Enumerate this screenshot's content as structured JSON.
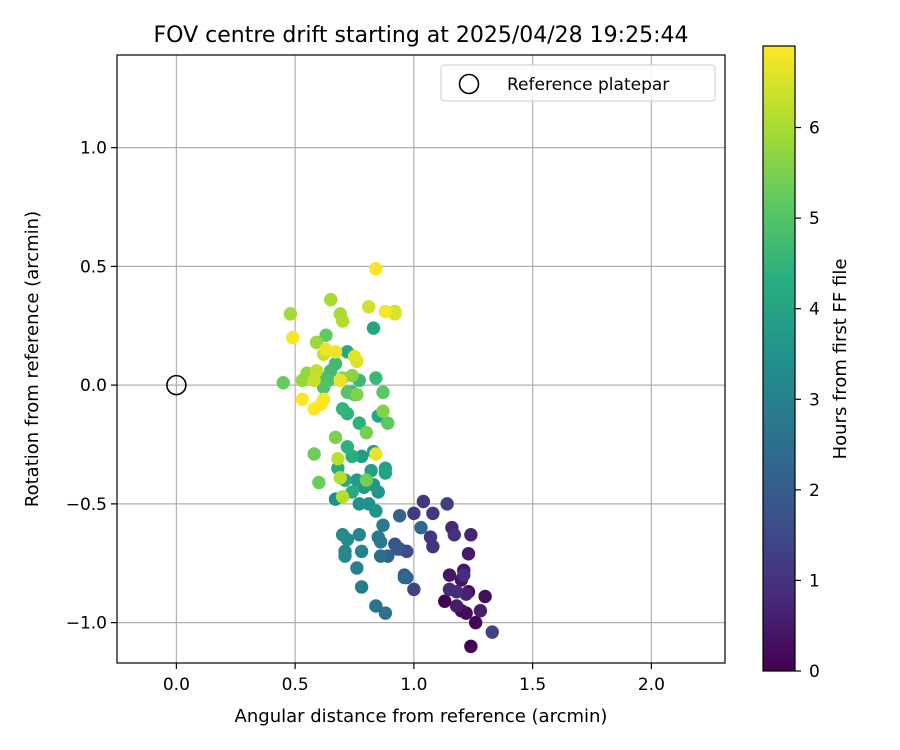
{
  "chart_data": {
    "type": "scatter",
    "title": "FOV centre drift starting at 2025/04/28 19:25:44",
    "xlabel": "Angular distance from reference (arcmin)",
    "ylabel": "Rotation from reference (arcmin)",
    "xlim": [
      -0.25,
      2.31
    ],
    "ylim": [
      -1.17,
      1.39
    ],
    "xticks": [
      "0.0",
      "0.5",
      "1.0",
      "1.5",
      "2.0"
    ],
    "xtick_values": [
      0.0,
      0.5,
      1.0,
      1.5,
      2.0
    ],
    "yticks": [
      "1.0",
      "0.5",
      "0.0",
      "−0.5",
      "−1.0"
    ],
    "ytick_values": [
      1.0,
      0.5,
      0.0,
      -0.5,
      -1.0
    ],
    "grid": true,
    "legend": {
      "position": "top-right",
      "label": "Reference platepar"
    },
    "reference_point": {
      "x": 0.0,
      "y": 0.0
    },
    "colorbar": {
      "label": "Hours from first FF file",
      "colormap": "viridis",
      "range": [
        0,
        6.9
      ],
      "ticks": [
        "0",
        "1",
        "2",
        "3",
        "4",
        "5",
        "6"
      ],
      "tick_values": [
        0,
        1,
        2,
        3,
        4,
        5,
        6
      ]
    },
    "points": [
      [
        1.13,
        -0.91,
        0.0
      ],
      [
        1.24,
        -1.1,
        0.05
      ],
      [
        1.26,
        -1.0,
        0.1
      ],
      [
        1.22,
        -0.96,
        0.15
      ],
      [
        1.2,
        -0.95,
        0.2
      ],
      [
        1.3,
        -0.89,
        0.25
      ],
      [
        1.23,
        -0.87,
        0.3
      ],
      [
        1.2,
        -0.82,
        0.35
      ],
      [
        1.15,
        -0.8,
        0.4
      ],
      [
        1.21,
        -0.78,
        0.45
      ],
      [
        1.23,
        -0.71,
        0.5
      ],
      [
        1.18,
        -0.93,
        0.55
      ],
      [
        1.28,
        -0.95,
        0.6
      ],
      [
        1.22,
        -0.88,
        0.65
      ],
      [
        1.24,
        -0.63,
        0.7
      ],
      [
        1.16,
        -0.6,
        0.75
      ],
      [
        1.15,
        -0.86,
        0.8
      ],
      [
        1.18,
        -0.87,
        0.85
      ],
      [
        1.21,
        -0.8,
        0.9
      ],
      [
        1.17,
        -0.63,
        0.95
      ],
      [
        1.08,
        -0.68,
        1.0
      ],
      [
        1.07,
        -0.64,
        1.05
      ],
      [
        1.04,
        -0.49,
        1.1
      ],
      [
        1.08,
        -0.54,
        1.15
      ],
      [
        1.0,
        -0.54,
        1.2
      ],
      [
        1.14,
        -0.5,
        1.25
      ],
      [
        1.33,
        -1.04,
        1.3
      ],
      [
        1.0,
        -0.86,
        1.4
      ],
      [
        0.94,
        -0.69,
        1.5
      ],
      [
        0.97,
        -0.7,
        1.6
      ],
      [
        0.92,
        -0.67,
        1.7
      ],
      [
        0.96,
        -0.8,
        1.8
      ],
      [
        0.93,
        -0.69,
        1.9
      ],
      [
        0.97,
        -0.81,
        2.0
      ],
      [
        0.89,
        -0.72,
        2.1
      ],
      [
        0.94,
        -0.55,
        2.2
      ],
      [
        0.96,
        -0.81,
        2.3
      ],
      [
        1.03,
        -0.6,
        2.35
      ],
      [
        0.86,
        -0.72,
        2.45
      ],
      [
        0.88,
        -0.96,
        2.55
      ],
      [
        0.84,
        -0.93,
        2.65
      ],
      [
        0.86,
        -0.66,
        2.75
      ],
      [
        0.85,
        -0.64,
        2.8
      ],
      [
        0.87,
        -0.59,
        2.85
      ],
      [
        0.78,
        -0.85,
        2.9
      ],
      [
        0.76,
        -0.77,
        3.0
      ],
      [
        0.78,
        -0.7,
        3.05
      ],
      [
        0.77,
        -0.63,
        3.1
      ],
      [
        0.71,
        -0.7,
        3.15
      ],
      [
        0.71,
        -0.72,
        3.2
      ],
      [
        0.7,
        -0.63,
        3.25
      ],
      [
        0.72,
        -0.65,
        3.3
      ],
      [
        0.67,
        -0.48,
        3.35
      ],
      [
        0.77,
        -0.5,
        3.4
      ],
      [
        0.81,
        -0.5,
        3.45
      ],
      [
        0.84,
        -0.53,
        3.5
      ],
      [
        0.85,
        -0.45,
        3.55
      ],
      [
        0.83,
        -0.42,
        3.6
      ],
      [
        0.79,
        -0.43,
        3.65
      ],
      [
        0.76,
        -0.4,
        3.7
      ],
      [
        0.78,
        -0.3,
        3.75
      ],
      [
        0.83,
        -0.28,
        3.8
      ],
      [
        0.82,
        -0.36,
        3.85
      ],
      [
        0.88,
        -0.35,
        3.9
      ],
      [
        0.88,
        -0.37,
        3.95
      ],
      [
        0.85,
        -0.13,
        4.0
      ],
      [
        0.83,
        0.24,
        4.05
      ],
      [
        0.72,
        0.14,
        4.1
      ],
      [
        0.74,
        -0.45,
        4.15
      ],
      [
        0.71,
        -0.4,
        4.2
      ],
      [
        0.68,
        -0.35,
        4.25
      ],
      [
        0.74,
        -0.3,
        4.3
      ],
      [
        0.72,
        -0.26,
        4.35
      ],
      [
        0.77,
        -0.16,
        4.4
      ],
      [
        0.72,
        -0.12,
        4.45
      ],
      [
        0.7,
        -0.1,
        4.5
      ],
      [
        0.74,
        -0.03,
        4.55
      ],
      [
        0.84,
        0.03,
        4.6
      ],
      [
        0.77,
        0.02,
        4.65
      ],
      [
        0.67,
        0.09,
        4.7
      ],
      [
        0.65,
        0.06,
        4.75
      ],
      [
        0.61,
        0.03,
        4.85
      ],
      [
        0.64,
        0.02,
        4.9
      ],
      [
        0.62,
        -0.01,
        4.95
      ],
      [
        0.72,
        -0.03,
        5.0
      ],
      [
        0.75,
        -0.04,
        5.05
      ],
      [
        0.87,
        -0.03,
        5.1
      ],
      [
        0.89,
        -0.16,
        5.15
      ],
      [
        0.63,
        0.21,
        5.2
      ],
      [
        0.45,
        0.01,
        5.25
      ],
      [
        0.6,
        -0.41,
        5.3
      ],
      [
        0.58,
        -0.29,
        5.35
      ],
      [
        0.8,
        -0.4,
        5.4
      ],
      [
        0.8,
        -0.2,
        5.45
      ],
      [
        0.67,
        -0.22,
        5.5
      ],
      [
        0.76,
        -0.04,
        5.55
      ],
      [
        0.87,
        -0.11,
        5.6
      ],
      [
        0.74,
        0.04,
        5.65
      ],
      [
        0.7,
        0.03,
        5.7
      ],
      [
        0.55,
        0.05,
        5.75
      ],
      [
        0.53,
        0.02,
        5.8
      ],
      [
        0.59,
        0.18,
        5.85
      ],
      [
        0.48,
        0.3,
        5.9
      ],
      [
        0.65,
        0.36,
        5.95
      ],
      [
        0.69,
        0.3,
        6.0
      ],
      [
        0.7,
        0.27,
        6.05
      ],
      [
        0.7,
        -0.47,
        6.1
      ],
      [
        0.69,
        -0.39,
        6.15
      ],
      [
        0.68,
        -0.31,
        6.2
      ],
      [
        0.59,
        0.06,
        6.25
      ],
      [
        0.62,
        0.13,
        6.3
      ],
      [
        0.58,
        0.02,
        6.35
      ],
      [
        0.81,
        0.33,
        6.4
      ],
      [
        0.92,
        0.31,
        6.45
      ],
      [
        0.92,
        0.3,
        6.5
      ],
      [
        0.76,
        0.1,
        6.55
      ],
      [
        0.75,
        0.12,
        6.6
      ],
      [
        0.84,
        -0.29,
        6.65
      ],
      [
        0.69,
        0.02,
        6.7
      ],
      [
        0.67,
        0.14,
        6.75
      ],
      [
        0.63,
        0.15,
        6.75
      ],
      [
        0.88,
        0.31,
        6.8
      ],
      [
        0.84,
        0.49,
        6.85
      ],
      [
        0.49,
        0.2,
        6.85
      ],
      [
        0.53,
        -0.06,
        6.88
      ],
      [
        0.58,
        -0.1,
        6.9
      ],
      [
        0.61,
        -0.08,
        6.9
      ],
      [
        0.62,
        -0.06,
        6.9
      ]
    ]
  }
}
